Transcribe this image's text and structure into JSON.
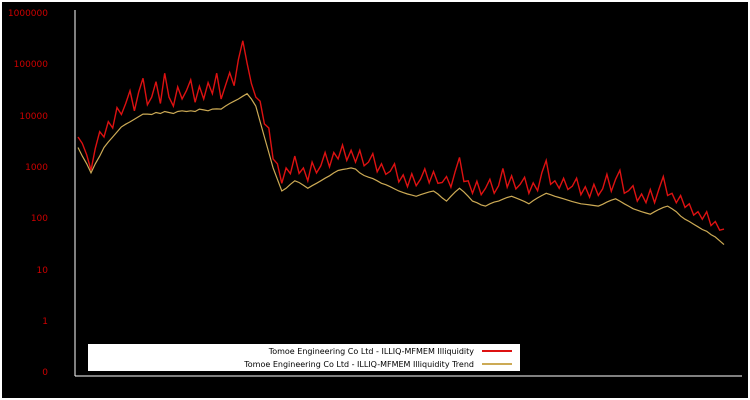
{
  "chart_data": {
    "type": "line",
    "title": "",
    "xlabel": "",
    "ylabel": "",
    "y_scale": "log",
    "ylim": [
      1,
      1000000
    ],
    "y_tick_labels": [
      "1000000",
      "100000",
      "10000",
      "1000",
      "100",
      "10",
      "1",
      "0"
    ],
    "x_tick_labels": [],
    "grid": false,
    "background": "#000000",
    "axis_color": "#ffffff",
    "tick_label_color": "#cc0000",
    "legend_position": "bottom-center",
    "legend_background": "#ffffff",
    "legend_text_color": "#000000",
    "series": [
      {
        "name": "Tomoe Engineering Co Ltd - ILLIQ-MFMEM Illiquidity",
        "color": "#dd1111",
        "values": [
          4000,
          3000,
          1800,
          900,
          2400,
          5100,
          4000,
          8000,
          6000,
          15000,
          11000,
          18000,
          32000,
          13000,
          30000,
          56000,
          17000,
          24000,
          48000,
          18000,
          70000,
          24000,
          16000,
          38000,
          22000,
          32000,
          52000,
          19000,
          39000,
          22000,
          46000,
          28000,
          70000,
          22000,
          40000,
          72000,
          40000,
          130000,
          300000,
          110000,
          44000,
          24000,
          20000,
          7200,
          6000,
          1500,
          1200,
          500,
          1000,
          770,
          1700,
          780,
          1000,
          560,
          1300,
          800,
          1100,
          2000,
          1050,
          2000,
          1500,
          2800,
          1400,
          2200,
          1300,
          2200,
          1100,
          1300,
          1900,
          840,
          1200,
          750,
          860,
          1200,
          530,
          730,
          430,
          770,
          450,
          600,
          960,
          510,
          850,
          500,
          520,
          680,
          420,
          850,
          1600,
          540,
          560,
          320,
          550,
          300,
          400,
          600,
          320,
          450,
          980,
          420,
          700,
          390,
          480,
          660,
          320,
          510,
          360,
          810,
          1400,
          480,
          560,
          400,
          630,
          380,
          440,
          630,
          300,
          430,
          270,
          480,
          290,
          390,
          750,
          350,
          600,
          900,
          320,
          360,
          450,
          225,
          310,
          210,
          380,
          210,
          390,
          680,
          290,
          320,
          210,
          290,
          170,
          200,
          120,
          140,
          100,
          140,
          75,
          90,
          61,
          64
        ]
      },
      {
        "name": "Tomoe Engineering Co Ltd - ILLIQ-MFMEM Illiquidity Trend",
        "color": "#ccaa55",
        "values": [
          2500,
          1700,
          1200,
          800,
          1200,
          1700,
          2500,
          3200,
          4000,
          5000,
          6300,
          7100,
          7900,
          8900,
          10000,
          11200,
          11200,
          11000,
          12000,
          11500,
          12600,
          12000,
          11500,
          12600,
          13000,
          12600,
          13000,
          12600,
          14000,
          13500,
          13000,
          14000,
          14100,
          14000,
          16000,
          18000,
          20000,
          22000,
          25000,
          28000,
          22000,
          16000,
          8000,
          4000,
          2000,
          1000,
          600,
          355,
          400,
          480,
          560,
          520,
          460,
          400,
          450,
          500,
          560,
          630,
          700,
          800,
          890,
          930,
          960,
          1000,
          950,
          800,
          710,
          660,
          620,
          560,
          500,
          470,
          430,
          390,
          355,
          330,
          310,
          295,
          280,
          300,
          320,
          340,
          355,
          310,
          260,
          225,
          280,
          340,
          400,
          340,
          280,
          225,
          210,
          190,
          180,
          200,
          215,
          225,
          245,
          265,
          280,
          260,
          240,
          220,
          200,
          230,
          260,
          290,
          320,
          300,
          280,
          265,
          250,
          235,
          220,
          210,
          200,
          195,
          190,
          185,
          180,
          195,
          215,
          235,
          250,
          225,
          200,
          180,
          160,
          150,
          140,
          132,
          125,
          140,
          155,
          170,
          180,
          160,
          140,
          115,
          100,
          90,
          80,
          71,
          63,
          58,
          50,
          45,
          38,
          32
        ]
      }
    ]
  }
}
